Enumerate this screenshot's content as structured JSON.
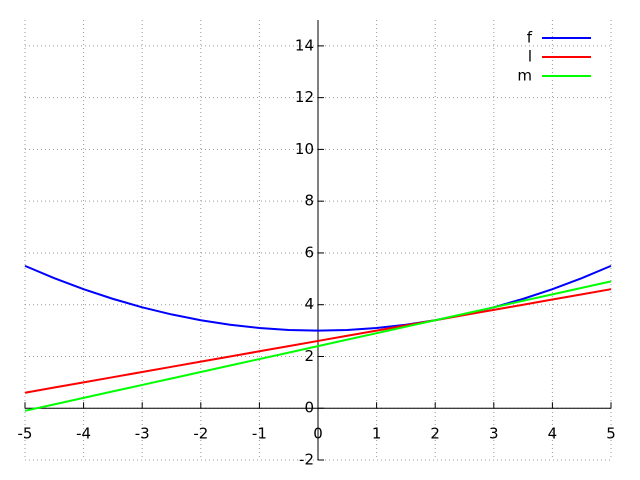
{
  "chart_data": {
    "type": "line",
    "x": [
      -5,
      -4.5,
      -4,
      -3.5,
      -3,
      -2.5,
      -2,
      -1.5,
      -1,
      -0.5,
      0,
      0.5,
      1,
      1.5,
      2,
      2.5,
      3,
      3.5,
      4,
      4.5,
      5
    ],
    "series": [
      {
        "name": "f",
        "color": "#0000ff",
        "values": [
          5.5,
          5.025,
          4.6,
          4.225,
          3.9,
          3.625,
          3.4,
          3.225,
          3.1,
          3.025,
          3,
          3.025,
          3.1,
          3.225,
          3.4,
          3.625,
          3.9,
          4.225,
          4.6,
          5.025,
          5.5
        ]
      },
      {
        "name": "l",
        "color": "#ff0000",
        "values": [
          0.6,
          0.8,
          1,
          1.2,
          1.4,
          1.6,
          1.8,
          2,
          2.2,
          2.4,
          2.6,
          2.8,
          3,
          3.2,
          3.4,
          3.6,
          3.8,
          4,
          4.2,
          4.4,
          4.6
        ]
      },
      {
        "name": "m",
        "color": "#00ff00",
        "values": [
          -0.1,
          0.15,
          0.4,
          0.65,
          0.9,
          1.15,
          1.4,
          1.65,
          1.9,
          2.15,
          2.4,
          2.65,
          2.9,
          3.15,
          3.4,
          3.65,
          3.9,
          4.15,
          4.4,
          4.65,
          4.9
        ]
      }
    ],
    "xlim": [
      -5,
      5
    ],
    "ylim": [
      -2,
      15
    ],
    "xticks": [
      -5,
      -4,
      -3,
      -2,
      -1,
      0,
      1,
      2,
      3,
      4,
      5
    ],
    "yticks": [
      -2,
      0,
      2,
      4,
      6,
      8,
      10,
      12,
      14
    ],
    "grid": true,
    "legend": "top-right"
  }
}
